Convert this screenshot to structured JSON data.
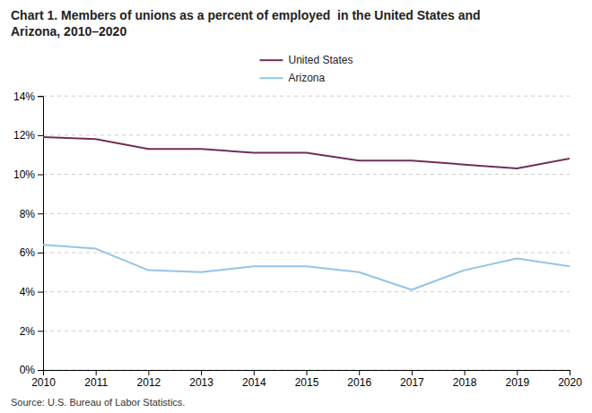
{
  "chart_data": {
    "type": "line",
    "title": "Chart 1. Members of unions as a percent of employed  in the United States and\nArizona, 2010–2020",
    "annotations": [
      "Source: U.S. Bureau of Labor Statistics."
    ],
    "x": [
      2010,
      2011,
      2012,
      2013,
      2014,
      2015,
      2016,
      2017,
      2018,
      2019,
      2020
    ],
    "xlim": [
      2010,
      2020
    ],
    "xticks": [
      2010,
      2011,
      2012,
      2013,
      2014,
      2015,
      2016,
      2017,
      2018,
      2019,
      2020
    ],
    "series": [
      {
        "name": "United States",
        "color": "#722F57",
        "values": [
          11.9,
          11.8,
          11.3,
          11.3,
          11.1,
          11.1,
          10.7,
          10.7,
          10.5,
          10.3,
          10.8
        ]
      },
      {
        "name": "Arizona",
        "color": "#92C5E8",
        "values": [
          6.4,
          6.2,
          5.1,
          5.0,
          5.3,
          5.3,
          5.0,
          4.1,
          5.1,
          5.7,
          5.3
        ]
      }
    ],
    "ylim": [
      0,
      14
    ],
    "yticks": [
      {
        "value": 0,
        "label": "0%"
      },
      {
        "value": 2,
        "label": "2%"
      },
      {
        "value": 4,
        "label": "4%"
      },
      {
        "value": 6,
        "label": "6%"
      },
      {
        "value": 8,
        "label": "8%"
      },
      {
        "value": 10,
        "label": "10%"
      },
      {
        "value": 12,
        "label": "12%"
      },
      {
        "value": 14,
        "label": "14%"
      }
    ],
    "grid": true,
    "legend": "top"
  }
}
